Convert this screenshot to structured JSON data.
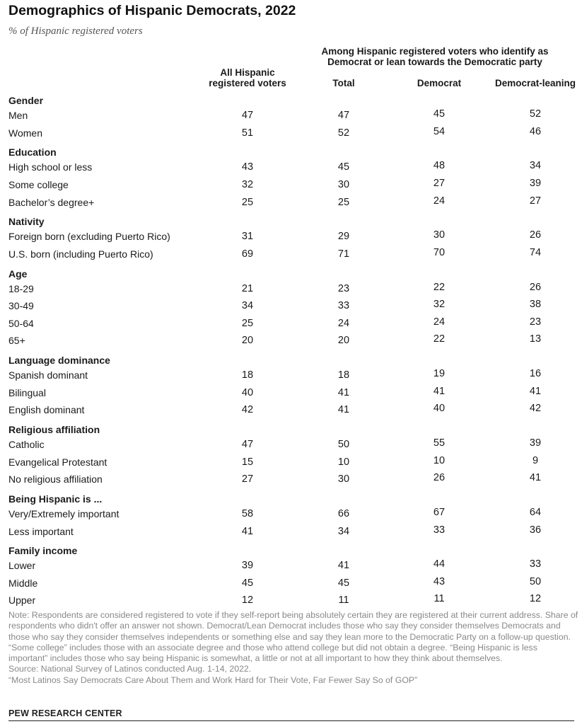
{
  "title": "Demographics of Hispanic Democrats, 2022",
  "subtitle": "% of Hispanic registered voters",
  "group_header": [
    "Among Hispanic registered voters who identify as",
    "Democrat or lean towards the Democratic party"
  ],
  "columns": {
    "all": [
      "All Hispanic",
      "registered voters"
    ],
    "total": "Total",
    "democrat": "Democrat",
    "leaning": "Democrat-leaning"
  },
  "chart_data": {
    "type": "table",
    "title": "Demographics of Hispanic Democrats, 2022",
    "subtitle": "% of Hispanic registered voters",
    "columns": [
      "All Hispanic registered voters",
      "Total",
      "Democrat",
      "Democrat-leaning"
    ],
    "sections": [
      {
        "name": "Gender",
        "rows": [
          {
            "label": "Men",
            "values": [
              47,
              47,
              45,
              52
            ]
          },
          {
            "label": "Women",
            "values": [
              51,
              52,
              54,
              46
            ]
          }
        ]
      },
      {
        "name": "Education",
        "rows": [
          {
            "label": "High school or less",
            "values": [
              43,
              45,
              48,
              34
            ]
          },
          {
            "label": "Some college",
            "values": [
              32,
              30,
              27,
              39
            ]
          },
          {
            "label": "Bachelor’s degree+",
            "values": [
              25,
              25,
              24,
              27
            ]
          }
        ]
      },
      {
        "name": "Nativity",
        "rows": [
          {
            "label": "Foreign born (excluding Puerto Rico)",
            "values": [
              31,
              29,
              30,
              26
            ]
          },
          {
            "label": "U.S. born (including Puerto Rico)",
            "values": [
              69,
              71,
              70,
              74
            ]
          }
        ]
      },
      {
        "name": "Age",
        "rows": [
          {
            "label": "18-29",
            "values": [
              21,
              23,
              22,
              26
            ]
          },
          {
            "label": "30-49",
            "values": [
              34,
              33,
              32,
              38
            ]
          },
          {
            "label": "50-64",
            "values": [
              25,
              24,
              24,
              23
            ]
          },
          {
            "label": "65+",
            "values": [
              20,
              20,
              22,
              13
            ]
          }
        ]
      },
      {
        "name": "Language dominance",
        "rows": [
          {
            "label": "Spanish dominant",
            "values": [
              18,
              18,
              19,
              16
            ]
          },
          {
            "label": "Bilingual",
            "values": [
              40,
              41,
              41,
              41
            ]
          },
          {
            "label": "English dominant",
            "values": [
              42,
              41,
              40,
              42
            ]
          }
        ]
      },
      {
        "name": "Religious affiliation",
        "rows": [
          {
            "label": "Catholic",
            "values": [
              47,
              50,
              55,
              39
            ]
          },
          {
            "label": "Evangelical Protestant",
            "values": [
              15,
              10,
              10,
              9
            ]
          },
          {
            "label": "No religious affiliation",
            "values": [
              27,
              30,
              26,
              41
            ]
          }
        ]
      },
      {
        "name": "Being Hispanic is ...",
        "rows": [
          {
            "label": "Very/Extremely important",
            "values": [
              58,
              66,
              67,
              64
            ]
          },
          {
            "label": "Less important",
            "values": [
              41,
              34,
              33,
              36
            ]
          }
        ]
      },
      {
        "name": "Family income",
        "rows": [
          {
            "label": "Lower",
            "values": [
              39,
              41,
              44,
              33
            ]
          },
          {
            "label": "Middle",
            "values": [
              45,
              45,
              43,
              50
            ]
          },
          {
            "label": "Upper",
            "values": [
              12,
              11,
              11,
              12
            ]
          }
        ]
      }
    ]
  },
  "notes": [
    "Note: Respondents are considered registered to vote if they self-report being absolutely certain they are registered at their current address. Share of respondents who didn't offer an answer not shown. Democrat/Lean Democrat includes those who say they consider themselves Democrats and those who say they consider themselves independents or something else and say they lean more to the Democratic Party on a follow-up question. “Some college” includes those with an associate degree and those who attend college but did not obtain a degree. “Being Hispanic is less important” includes those who say being Hispanic is somewhat, a little or not at all important to how they think about themselves.",
    "Source: National Survey of Latinos conducted Aug. 1-14, 2022.",
    "“Most Latinos Say Democrats Care About Them and Work Hard for Their Vote, Far Fewer Say So of GOP”"
  ],
  "brand": "PEW RESEARCH CENTER"
}
